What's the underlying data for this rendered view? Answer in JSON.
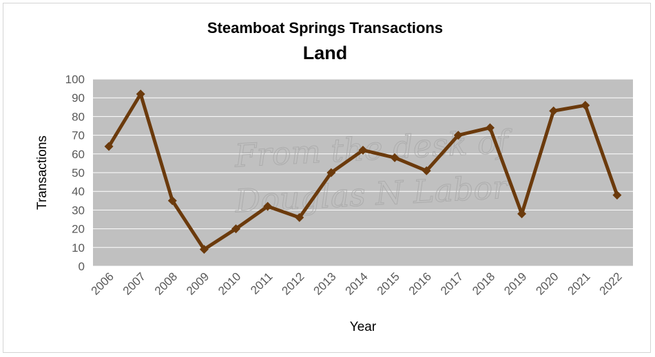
{
  "chart_data": {
    "type": "line",
    "title": "Steamboat Springs Transactions",
    "subtitle": "Land",
    "xlabel": "Year",
    "ylabel": "Transactions",
    "categories": [
      "2006",
      "2007",
      "2008",
      "2009",
      "2010",
      "2011",
      "2012",
      "2013",
      "2014",
      "2015",
      "2016",
      "2017",
      "2018",
      "2019",
      "2020",
      "2021",
      "2022"
    ],
    "series": [
      {
        "values": [
          64,
          92,
          35,
          9,
          20,
          32,
          26,
          50,
          62,
          58,
          51,
          70,
          74,
          28,
          83,
          86,
          38
        ]
      }
    ],
    "ylim": [
      0,
      100
    ],
    "yticks": [
      0,
      10,
      20,
      30,
      40,
      50,
      60,
      70,
      80,
      90,
      100
    ],
    "grid": true,
    "legend": "none",
    "colors": {
      "line": "#6b3a0c",
      "plot_bg": "#c0c0c0",
      "grid": "#ffffff"
    },
    "watermark": {
      "line1": "From the desk of",
      "line2": "Douglas N Labor"
    }
  }
}
